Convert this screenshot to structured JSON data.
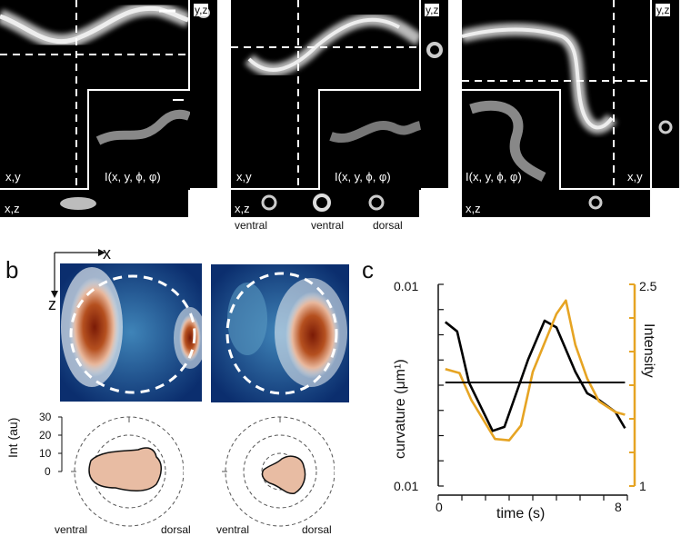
{
  "panels": {
    "a": {
      "letter": "a",
      "columns": [
        {
          "main_label": "x,y",
          "inset_label": "I(x, y, ϕ, φ)",
          "yz_label": "y,z",
          "xz_label": "x,z",
          "bottom_labels": []
        },
        {
          "main_label": "x,y",
          "inset_label": "I(x, y, ϕ, φ)",
          "yz_label": "y,z",
          "xz_label": "x,z",
          "bottom_labels": [
            "ventral",
            "ventral",
            "dorsal"
          ]
        },
        {
          "main_label": "x,y",
          "inset_label": "I(x, y, ϕ, φ)",
          "yz_label": "y,z",
          "xz_label": "x,z",
          "bottom_labels": []
        }
      ]
    },
    "b": {
      "letter": "b",
      "axis_x": "x",
      "axis_z": "z",
      "polar_ylabel": "Int (au)",
      "polar_ticks": [
        "30",
        "20",
        "10",
        "0"
      ],
      "polar_left": "ventral",
      "polar_right": "dorsal",
      "colormap": {
        "low": "#0b2e6e",
        "mid": "#e8ecee",
        "high": "#7a1a06"
      }
    },
    "c": {
      "letter": "c",
      "chart_data": {
        "type": "line",
        "xlabel": "time (s)",
        "ylabel_left": "curvature (μm¹)",
        "ylabel_right": "Intensity",
        "x_ticks": [
          "0",
          "8"
        ],
        "left_ticks": [
          "0.01",
          "0.01"
        ],
        "right_ticks": [
          "2.5",
          "1"
        ],
        "xlim": [
          0,
          8
        ],
        "ylim_right": [
          1,
          2.5
        ],
        "series": [
          {
            "color": "#000000",
            "x": [
              0.3,
              0.8,
              1.3,
              2.3,
              2.8,
              3.8,
              4.5,
              5.0,
              5.8,
              6.3,
              6.8,
              7.5,
              7.9
            ],
            "values": [
              2.22,
              2.15,
              1.77,
              1.41,
              1.44,
              1.94,
              2.23,
              2.18,
              1.85,
              1.69,
              1.64,
              1.55,
              1.43
            ]
          },
          {
            "color": "#e6a423",
            "x": [
              0.3,
              0.9,
              1.4,
              2.4,
              3.0,
              3.5,
              4.0,
              5.0,
              5.4,
              5.8,
              6.3,
              6.8,
              7.5,
              7.9
            ],
            "values": [
              1.87,
              1.84,
              1.64,
              1.35,
              1.34,
              1.45,
              1.85,
              2.28,
              2.38,
              2.05,
              1.8,
              1.63,
              1.55,
              1.53
            ]
          },
          {
            "color": "#000000",
            "x": [
              0.3,
              7.9
            ],
            "values": [
              1.77,
              1.77
            ]
          }
        ]
      }
    }
  }
}
